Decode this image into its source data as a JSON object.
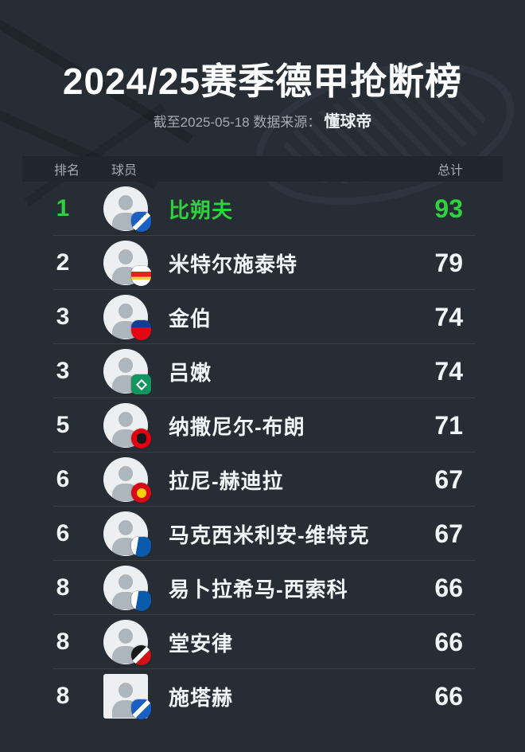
{
  "title": "2024/25赛季德甲抢断榜",
  "subtitle": {
    "prefix": "截至2025-05-18 数据来源：",
    "source": "懂球帝"
  },
  "table": {
    "headers": {
      "rank": "排名",
      "player": "球员",
      "total": "总计"
    },
    "rows": [
      {
        "rank": "1",
        "name": "比朔夫",
        "total": "93",
        "highlight": true,
        "team": "hoffenheim",
        "avatar_shape": "circle"
      },
      {
        "rank": "2",
        "name": "米特尔施泰特",
        "total": "79",
        "highlight": false,
        "team": "stuttgart",
        "avatar_shape": "circle"
      },
      {
        "rank": "3",
        "name": "金伯",
        "total": "74",
        "highlight": false,
        "team": "heidenheim",
        "avatar_shape": "circle"
      },
      {
        "rank": "3",
        "name": "吕嫩",
        "total": "74",
        "highlight": false,
        "team": "bremen",
        "avatar_shape": "circle"
      },
      {
        "rank": "5",
        "name": "纳撒尼尔-布朗",
        "total": "71",
        "highlight": false,
        "team": "frankfurt",
        "avatar_shape": "circle"
      },
      {
        "rank": "6",
        "name": "拉尼-赫迪拉",
        "total": "67",
        "highlight": false,
        "team": "union",
        "avatar_shape": "circle"
      },
      {
        "rank": "6",
        "name": "马克西米利安-维特克",
        "total": "67",
        "highlight": false,
        "team": "bochum",
        "avatar_shape": "circle"
      },
      {
        "rank": "8",
        "name": "易卜拉希马-西索科",
        "total": "66",
        "highlight": false,
        "team": "bochum",
        "avatar_shape": "circle"
      },
      {
        "rank": "8",
        "name": "堂安律",
        "total": "66",
        "highlight": false,
        "team": "freiburg",
        "avatar_shape": "circle"
      },
      {
        "rank": "8",
        "name": "施塔赫",
        "total": "66",
        "highlight": false,
        "team": "hoffenheim",
        "avatar_shape": "square"
      }
    ]
  },
  "chart_data": {
    "type": "table",
    "title": "2024/25赛季德甲抢断榜",
    "subtitle": "截至2025-05-18 数据来源：懂球帝",
    "columns": [
      "排名",
      "球员",
      "总计"
    ],
    "rows": [
      [
        "1",
        "比朔夫",
        93
      ],
      [
        "2",
        "米特尔施泰特",
        79
      ],
      [
        "3",
        "金伯",
        74
      ],
      [
        "3",
        "吕嫩",
        74
      ],
      [
        "5",
        "纳撒尼尔-布朗",
        71
      ],
      [
        "6",
        "拉尼-赫迪拉",
        67
      ],
      [
        "6",
        "马克西米利安-维特克",
        67
      ],
      [
        "8",
        "易卜拉希马-西索科",
        66
      ],
      [
        "8",
        "堂安律",
        66
      ],
      [
        "8",
        "施塔赫",
        66
      ]
    ],
    "layout_hints": {
      "highlight_row": 0,
      "value_alignment": "right"
    }
  },
  "colors": {
    "background": "#272d35",
    "header_bg": "#20262e",
    "highlight_green": "#2fd13d",
    "text_primary": "#f2f5f7",
    "text_muted": "#a3abb3"
  }
}
